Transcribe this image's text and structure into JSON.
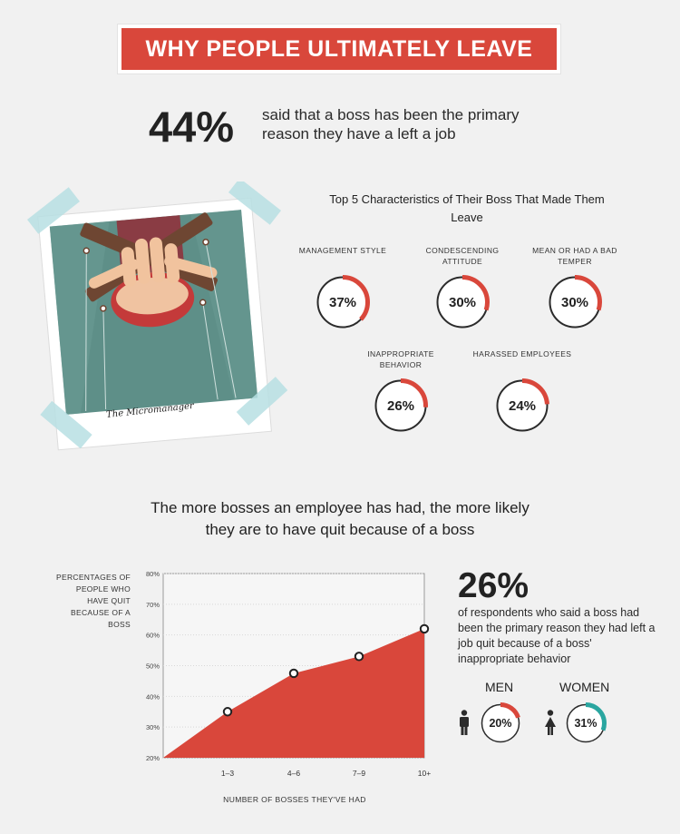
{
  "header": {
    "title": "WHY PEOPLE ULTIMATELY LEAVE"
  },
  "intro_stat": {
    "value": "44%",
    "text": "said that a boss has been the primary reason they have a left a job"
  },
  "illustration": {
    "caption": "The Micromanager"
  },
  "characteristics": {
    "title": "Top 5 Characteristics of Their Boss That Made Them Leave",
    "items": [
      {
        "label": "MANAGEMENT STYLE",
        "percent_text": "37%",
        "value": 37
      },
      {
        "label": "CONDESCENDING ATTITUDE",
        "percent_text": "30%",
        "value": 30
      },
      {
        "label": "MEAN OR HAD A BAD TEMPER",
        "percent_text": "30%",
        "value": 30
      },
      {
        "label": "INAPPROPRIATE BEHAVIOR",
        "percent_text": "26%",
        "value": 26
      },
      {
        "label": "HARASSED EMPLOYEES",
        "percent_text": "24%",
        "value": 24
      }
    ]
  },
  "section2": {
    "title": "The more bosses an employee has had, the more likely they are to have quit because of a boss"
  },
  "chart_data": {
    "type": "area",
    "categories": [
      "1–3",
      "4–6",
      "7–9",
      "10+"
    ],
    "values": [
      35,
      47.5,
      53,
      62
    ],
    "xlabel": "NUMBER OF BOSSES THEY'VE HAD",
    "ylabel": "PERCENTAGES OF PEOPLE WHO HAVE QUIT BECAUSE OF A BOSS",
    "ylim": [
      20,
      80
    ],
    "yticks": [
      "80%",
      "70%",
      "60%",
      "50%",
      "40%",
      "30%",
      "20%"
    ],
    "ytick_values": [
      80,
      70,
      60,
      50,
      40,
      30,
      20
    ],
    "grid": true,
    "colors": {
      "fill": "#d9473b",
      "marker": "#222222"
    }
  },
  "side_stat": {
    "value": "26%",
    "text": "of respondents who said a boss had been the primary reason they had left a job quit because of a boss' inappropriate behavior",
    "men": {
      "label": "MEN",
      "percent_text": "20%",
      "value": 20,
      "color": "#d9473b",
      "icon": "man-icon"
    },
    "women": {
      "label": "WOMEN",
      "percent_text": "31%",
      "value": 31,
      "color": "#2aa6a0",
      "icon": "woman-icon"
    }
  },
  "colors": {
    "accent": "#d9473b",
    "teal": "#2aa6a0",
    "background": "#f1f1f1",
    "text": "#222222"
  }
}
